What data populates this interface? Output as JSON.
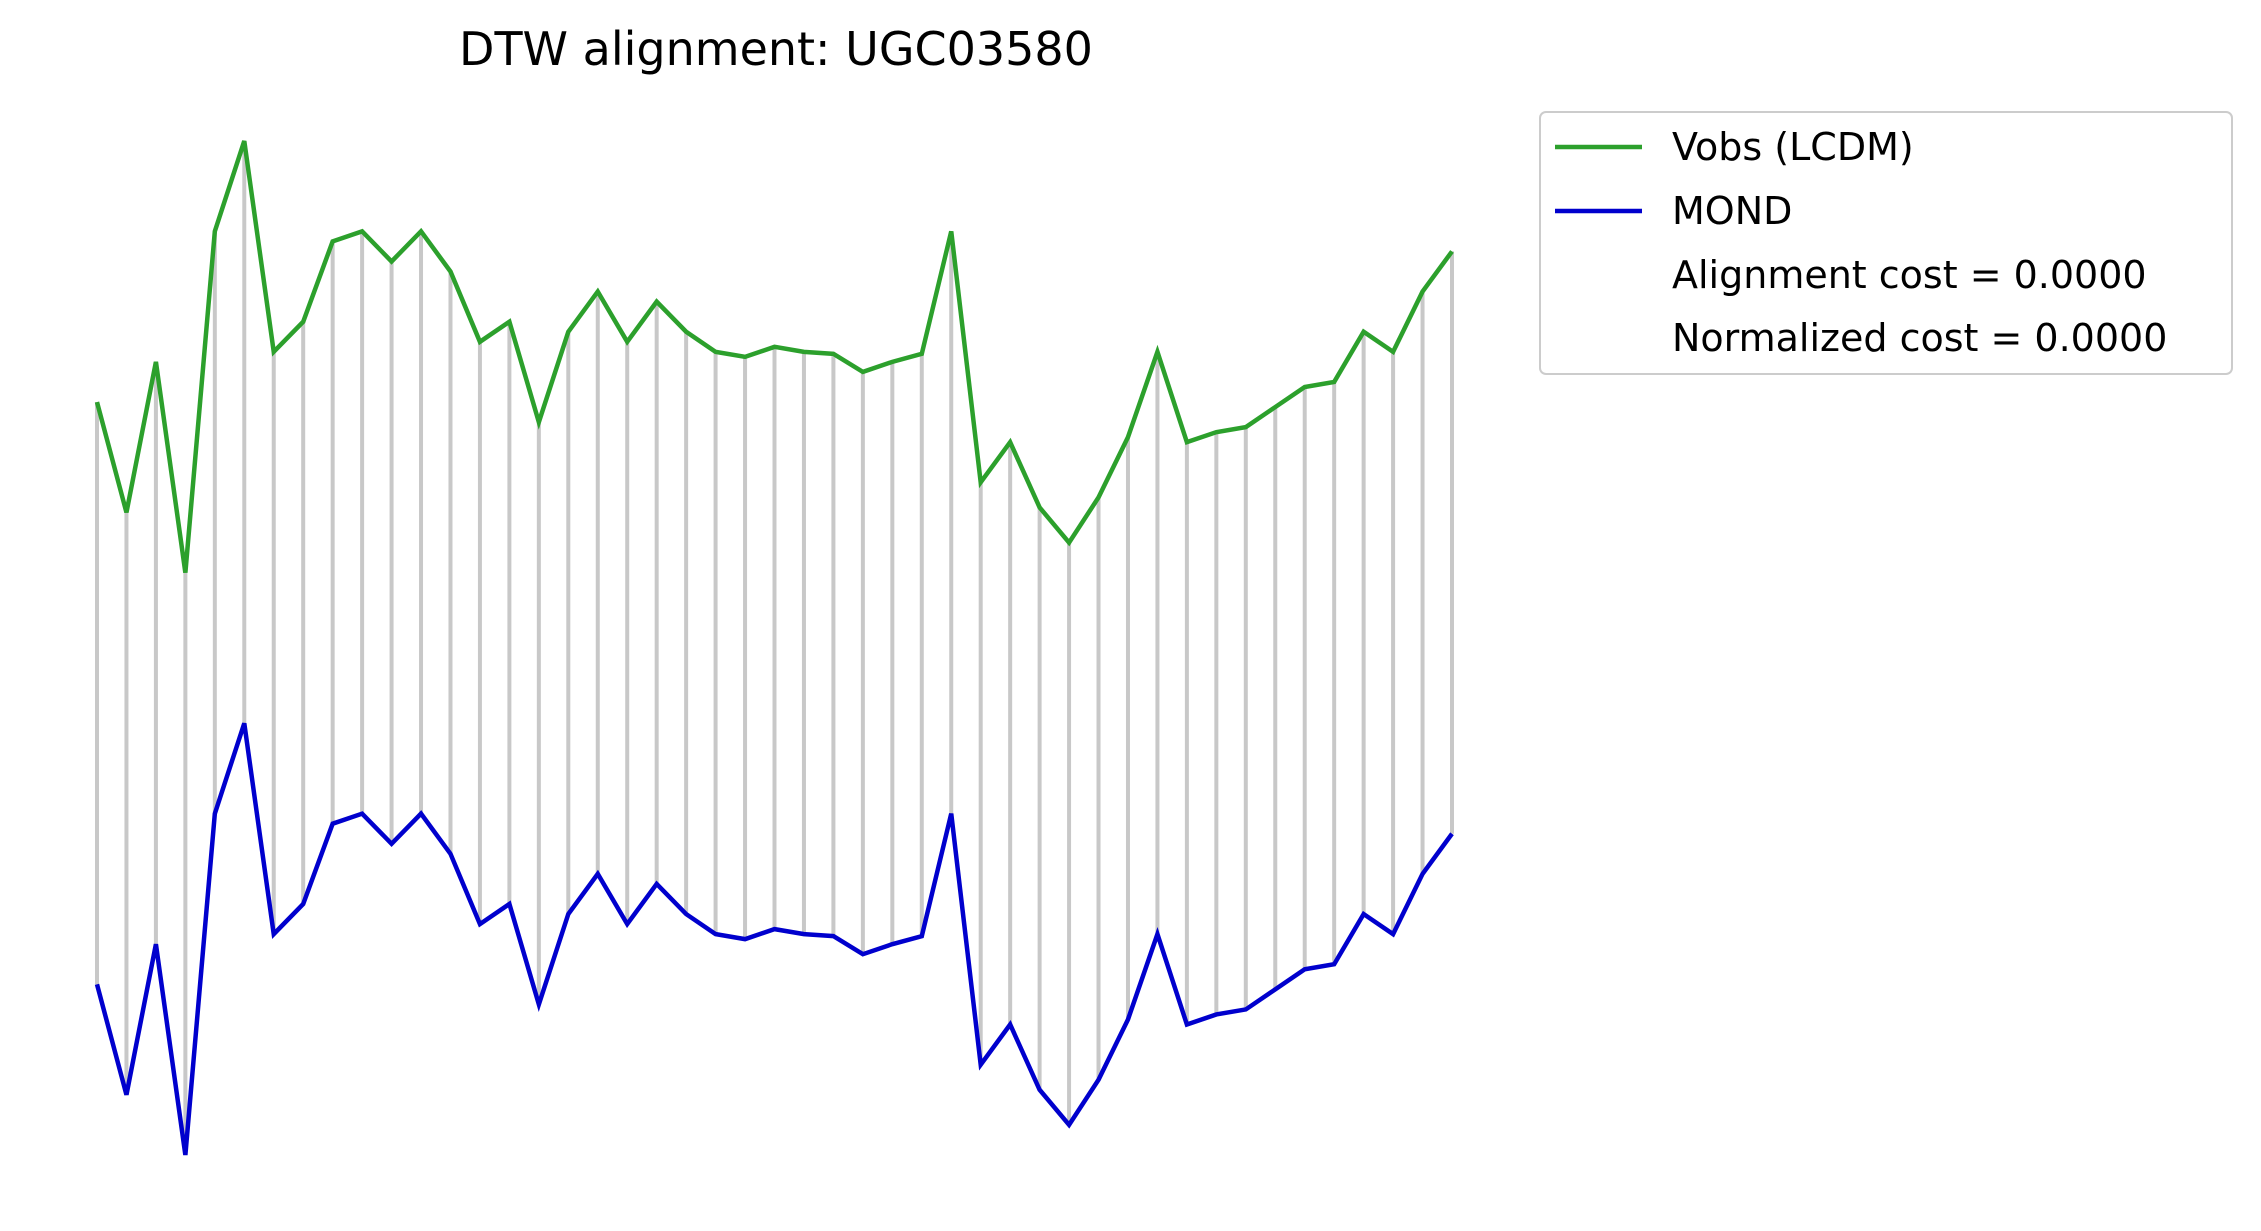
{
  "chart_data": {
    "type": "line",
    "title": "DTW alignment: UGC03580",
    "xlabel": "",
    "ylabel": "",
    "axes_visible": false,
    "grid": false,
    "legend_position": "outside-top-right",
    "alignment_lines": "vertical gray connectors between matched points of the two series",
    "x": [
      0,
      1,
      2,
      3,
      4,
      5,
      6,
      7,
      8,
      9,
      10,
      11,
      12,
      13,
      14,
      15,
      16,
      17,
      18,
      19,
      20,
      21,
      22,
      23,
      24,
      25,
      26,
      27,
      28,
      29,
      30,
      31,
      32,
      33,
      34,
      35,
      36,
      37,
      38,
      39,
      40,
      41,
      42,
      43,
      44,
      45,
      46
    ],
    "series": [
      {
        "name": "Vobs (LCDM)",
        "color": "#2ca02c",
        "values": [
          0.72,
          0.61,
          0.76,
          0.55,
          0.89,
          0.98,
          0.77,
          0.8,
          0.88,
          0.89,
          0.86,
          0.89,
          0.85,
          0.78,
          0.8,
          0.7,
          0.79,
          0.83,
          0.78,
          0.82,
          0.79,
          0.77,
          0.765,
          0.775,
          0.77,
          0.768,
          0.75,
          0.76,
          0.768,
          0.89,
          0.64,
          0.68,
          0.615,
          0.58,
          0.625,
          0.685,
          0.77,
          0.68,
          0.69,
          0.695,
          0.715,
          0.735,
          0.74,
          0.79,
          0.77,
          0.83,
          0.87
        ]
      },
      {
        "name": "MOND",
        "color": "#0000cd",
        "values": [
          0.14,
          0.03,
          0.18,
          -0.03,
          0.31,
          0.4,
          0.19,
          0.22,
          0.3,
          0.31,
          0.28,
          0.31,
          0.27,
          0.2,
          0.22,
          0.12,
          0.21,
          0.25,
          0.2,
          0.24,
          0.21,
          0.19,
          0.185,
          0.195,
          0.19,
          0.188,
          0.17,
          0.18,
          0.188,
          0.31,
          0.06,
          0.1,
          0.035,
          0.0,
          0.045,
          0.105,
          0.19,
          0.1,
          0.11,
          0.115,
          0.135,
          0.155,
          0.16,
          0.21,
          0.19,
          0.25,
          0.29
        ]
      }
    ],
    "legend_entries": [
      "Vobs (LCDM)",
      "MOND",
      "Alignment cost = 0.0000",
      "Normalized cost = 0.0000"
    ]
  }
}
